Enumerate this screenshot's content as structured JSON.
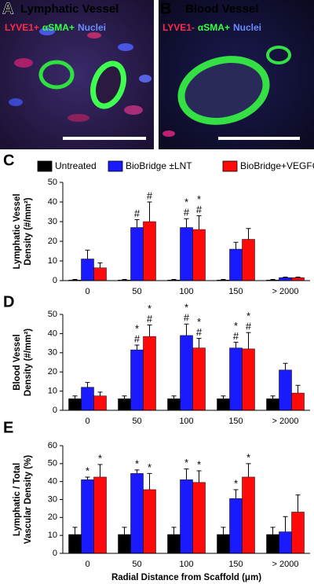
{
  "images": [
    {
      "label": "A",
      "title": "Lymphatic Vessel",
      "stains": [
        {
          "text": "LYVE1+",
          "color": "#ff2a4a"
        },
        {
          "text": "αSMA+",
          "color": "#33ff44"
        },
        {
          "text": "Nuclei",
          "color": "#6a8cff"
        }
      ]
    },
    {
      "label": "B",
      "title": "Blood Vessel",
      "stains": [
        {
          "text": "LYVE1-",
          "color": "#ff2a4a"
        },
        {
          "text": "αSMA+",
          "color": "#33ff44"
        },
        {
          "text": "Nuclei",
          "color": "#6a8cff"
        }
      ]
    }
  ],
  "chart_data": [
    {
      "type": "bar",
      "label": "C",
      "ylabel": [
        "Lymphatic Vessel",
        "Density (#/mm²)"
      ],
      "categories": [
        "0",
        "50",
        "100",
        "150",
        "> 2000"
      ],
      "ylim": [
        0,
        50
      ],
      "yticks": [
        0,
        10,
        20,
        30,
        40,
        50
      ],
      "series": [
        {
          "name": "Untreated",
          "color": "#000000",
          "values": [
            0.3,
            0.3,
            0.3,
            0.3,
            0.3
          ],
          "errors": [
            0.3,
            0.3,
            0.3,
            0.3,
            0.3
          ],
          "significance": [
            null,
            null,
            null,
            null,
            null
          ]
        },
        {
          "name": "BioBridge ±LNT",
          "color": "#1a1aff",
          "values": [
            11,
            27,
            27,
            16,
            1.5
          ],
          "errors": [
            4.5,
            4,
            4.5,
            3.5,
            0.3
          ],
          "significance": [
            null,
            [
              "#"
            ],
            [
              "*",
              "#"
            ],
            null,
            null
          ]
        },
        {
          "name": "BioBridge+VEGFC",
          "color": "#ff0a0a",
          "values": [
            6.5,
            30,
            26,
            21,
            1.5
          ],
          "errors": [
            2.5,
            10,
            7,
            5.5,
            0.3
          ],
          "significance": [
            null,
            [
              "#"
            ],
            [
              "*",
              "#"
            ],
            null,
            null
          ]
        }
      ]
    },
    {
      "type": "bar",
      "label": "D",
      "ylabel": [
        "Blood Vessel",
        "Density (#/mm²)"
      ],
      "categories": [
        "0",
        "50",
        "100",
        "150",
        "> 2000"
      ],
      "ylim": [
        0,
        50
      ],
      "yticks": [
        0,
        10,
        20,
        30,
        40,
        50
      ],
      "series": [
        {
          "name": "Untreated",
          "color": "#000000",
          "values": [
            6,
            6,
            6,
            6,
            6
          ],
          "errors": [
            1.5,
            1.5,
            1.5,
            1.5,
            1.5
          ],
          "significance": [
            null,
            null,
            null,
            null,
            null
          ]
        },
        {
          "name": "BioBridge ±LNT",
          "color": "#1a1aff",
          "values": [
            12,
            31.5,
            39,
            32.5,
            21
          ],
          "errors": [
            2.5,
            2.5,
            6,
            3,
            3.5
          ],
          "significance": [
            null,
            [
              "*",
              "#"
            ],
            [
              "*",
              "#"
            ],
            [
              "*",
              "#"
            ],
            null
          ]
        },
        {
          "name": "BioBridge+VEGFC",
          "color": "#ff0a0a",
          "values": [
            7.5,
            38.5,
            32.5,
            32,
            9
          ],
          "errors": [
            2,
            6,
            5,
            8.5,
            4
          ],
          "significance": [
            null,
            [
              "*",
              "#"
            ],
            [
              "*",
              "#"
            ],
            [
              "*",
              "#"
            ],
            null
          ]
        }
      ]
    },
    {
      "type": "bar",
      "label": "E",
      "ylabel": [
        "Lymphatic / Total",
        "Vascular Density (%)"
      ],
      "xlabel": "Radial Distance from Scaffold (μm)",
      "categories": [
        "0",
        "50",
        "100",
        "150",
        "> 2000"
      ],
      "ylim": [
        0,
        60
      ],
      "yticks": [
        0,
        10,
        20,
        30,
        40,
        50,
        60
      ],
      "series": [
        {
          "name": "Untreated",
          "color": "#000000",
          "values": [
            10.5,
            10.5,
            10.5,
            10.5,
            10.5
          ],
          "errors": [
            4,
            4,
            4,
            4,
            4
          ],
          "significance": [
            null,
            null,
            null,
            null,
            null
          ]
        },
        {
          "name": "BioBridge ±LNT",
          "color": "#1a1aff",
          "values": [
            41,
            44.5,
            41,
            30.5,
            12
          ],
          "errors": [
            1.5,
            2,
            6,
            5,
            8.5
          ],
          "significance": [
            [
              "*"
            ],
            [
              "*"
            ],
            [
              "*"
            ],
            [
              "*"
            ],
            null
          ]
        },
        {
          "name": "BioBridge+VEGFC",
          "color": "#ff0a0a",
          "values": [
            42.5,
            35.5,
            39.5,
            42.5,
            23
          ],
          "errors": [
            7,
            9,
            6.5,
            7.5,
            9.5
          ],
          "significance": [
            [
              "*"
            ],
            [
              "*"
            ],
            [
              "*"
            ],
            [
              "*"
            ],
            null
          ]
        }
      ]
    }
  ]
}
